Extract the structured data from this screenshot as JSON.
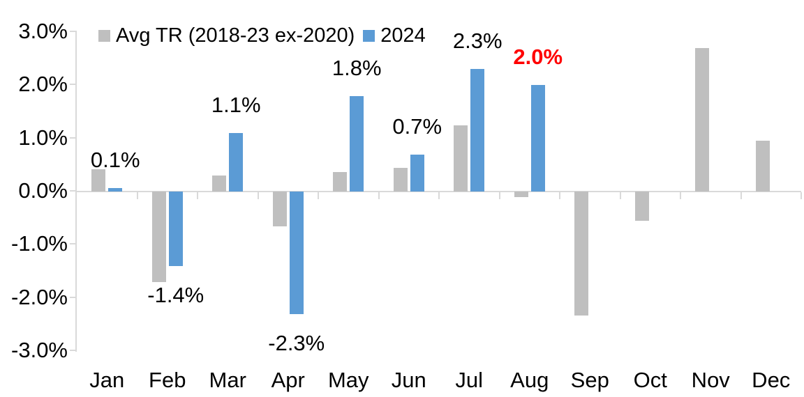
{
  "chart_data": {
    "type": "bar",
    "title": "",
    "categories": [
      "Jan",
      "Feb",
      "Mar",
      "Apr",
      "May",
      "Jun",
      "Jul",
      "Aug",
      "Sep",
      "Oct",
      "Nov",
      "Dec"
    ],
    "series": [
      {
        "name": "Avg TR (2018-23 ex-2020)",
        "color": "#bfbfbf",
        "values": [
          0.42,
          -1.7,
          0.3,
          -0.65,
          0.37,
          0.45,
          1.25,
          -0.1,
          -2.33,
          -0.55,
          2.7,
          0.96
        ]
      },
      {
        "name": "2024",
        "color": "#5b9bd5",
        "values": [
          0.06,
          -1.4,
          1.1,
          -2.3,
          1.8,
          0.7,
          2.3,
          2.0,
          null,
          null,
          null,
          null
        ],
        "labels": [
          "0.1%",
          "-1.4%",
          "1.1%",
          "-2.3%",
          "1.8%",
          "0.7%",
          "2.3%",
          "2.0%",
          "",
          "",
          "",
          ""
        ],
        "label_colors": [
          "#000000",
          "#000000",
          "#000000",
          "#000000",
          "#000000",
          "#000000",
          "#000000",
          "#ff0000",
          "",
          "",
          "",
          ""
        ],
        "label_bold": [
          false,
          false,
          false,
          false,
          false,
          false,
          false,
          true,
          false,
          false,
          false,
          false
        ]
      }
    ],
    "y_tick_labels": [
      "3.0%",
      "2.0%",
      "1.0%",
      "0.0%",
      "-1.0%",
      "-2.0%",
      "-3.0%"
    ],
    "ylim": [
      -3.0,
      3.0
    ],
    "y_step": 1.0,
    "grid": "off",
    "legend_position": "top-left",
    "axis_color": "#d9d9d9",
    "text_color": "#000000",
    "highlight_color": "#ff0000",
    "background": "#ffffff"
  }
}
